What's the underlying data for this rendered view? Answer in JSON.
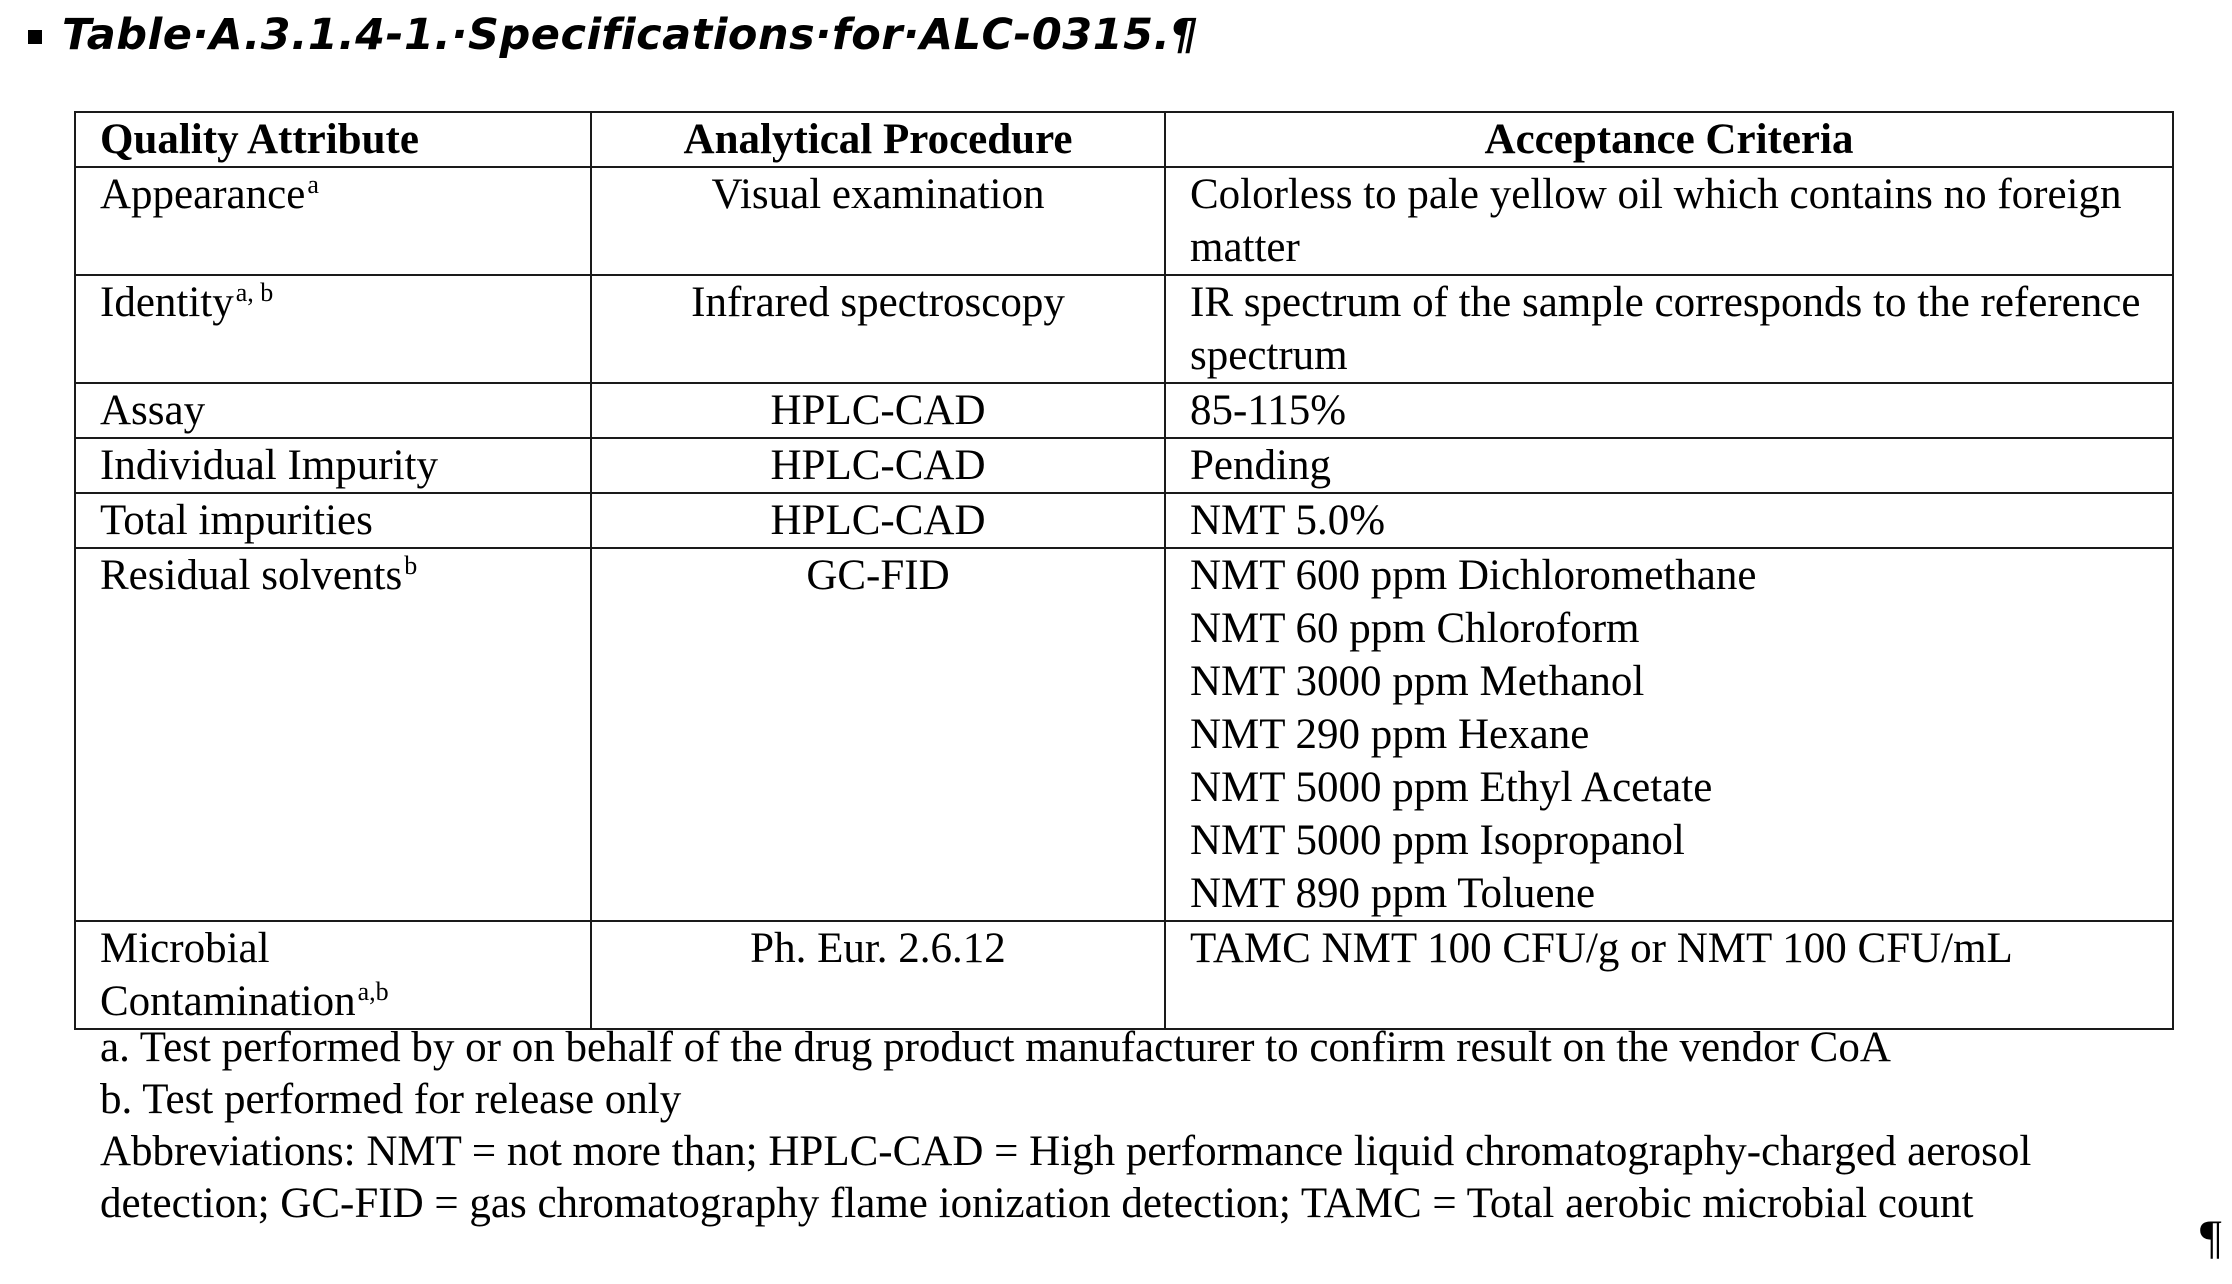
{
  "caption": {
    "text": "Table·A.3.1.4-1.·Specifications·for·ALC-0315.¶"
  },
  "table": {
    "headers": [
      "Quality Attribute",
      "Analytical Procedure",
      "Acceptance Criteria"
    ],
    "rows": [
      {
        "attribute": "Appearance",
        "sup": "a",
        "procedure": "Visual examination",
        "criteria": [
          "Colorless to pale yellow oil which contains no foreign matter"
        ]
      },
      {
        "attribute": "Identity",
        "sup": "a, b",
        "procedure": "Infrared spectroscopy",
        "criteria": [
          "IR spectrum of the sample corresponds to the reference spectrum"
        ]
      },
      {
        "attribute": "Assay",
        "sup": "",
        "procedure": "HPLC-CAD",
        "criteria": [
          "85-115%"
        ]
      },
      {
        "attribute": "Individual Impurity",
        "sup": "",
        "procedure": "HPLC-CAD",
        "criteria": [
          "Pending"
        ]
      },
      {
        "attribute": "Total impurities",
        "sup": "",
        "procedure": "HPLC-CAD",
        "criteria": [
          "NMT 5.0%"
        ]
      },
      {
        "attribute": "Residual solvents",
        "sup": "b",
        "procedure": "GC-FID",
        "criteria": [
          "NMT 600 ppm Dichloromethane",
          "NMT 60 ppm Chloroform",
          "NMT 3000 ppm Methanol",
          "NMT 290 ppm Hexane",
          "NMT 5000 ppm Ethyl Acetate",
          "NMT 5000 ppm Isopropanol",
          "NMT 890 ppm Toluene"
        ]
      },
      {
        "attribute": "Microbial Contamination",
        "sup": "a,b",
        "procedure": "Ph. Eur. 2.6.12",
        "criteria": [
          "TAMC NMT 100 CFU/g or NMT 100 CFU/mL"
        ]
      }
    ]
  },
  "footnotes": {
    "a": "a. Test performed by or on behalf of the drug product manufacturer to confirm result on the vendor CoA",
    "b": "b. Test performed for release only",
    "abbreviations": "Abbreviations: NMT = not more than; HPLC-CAD = High performance liquid chromatography-charged aerosol detection; GC-FID = gas chromatography flame ionization detection; TAMC = Total aerobic microbial count"
  },
  "end_mark": "¶"
}
